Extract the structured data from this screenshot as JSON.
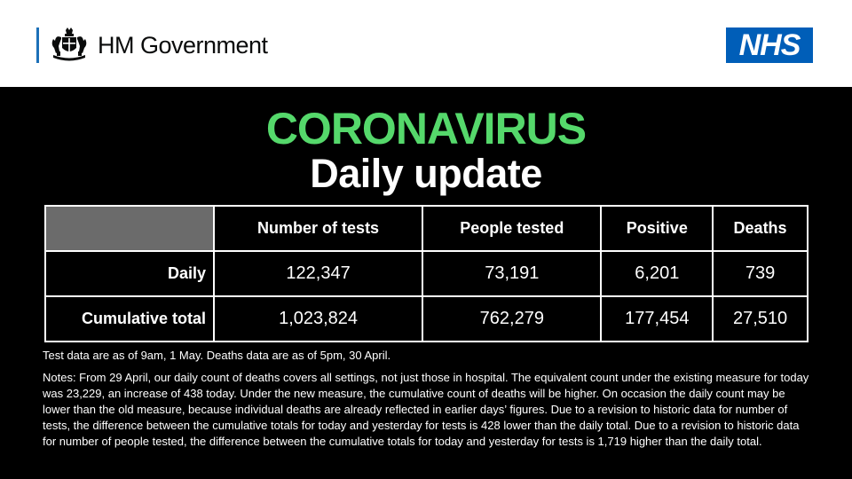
{
  "header": {
    "gov_name": "HM Government",
    "gov_logo_icon": "royal-coat-of-arms-icon",
    "nhs_logo": "NHS",
    "colors": {
      "nhs_blue": "#005eb8",
      "gov_rule": "#1d70b8"
    }
  },
  "title": {
    "line1": "CORONAVIRUS",
    "line2": "Daily update",
    "line1_color": "#55d86b"
  },
  "table": {
    "columns": [
      "",
      "Number of tests",
      "People tested",
      "Positive",
      "Deaths"
    ],
    "rows": [
      {
        "label": "Daily",
        "values": [
          "122,347",
          "73,191",
          "6,201",
          "739"
        ]
      },
      {
        "label": "Cumulative total",
        "values": [
          "1,023,824",
          "762,279",
          "177,454",
          "27,510"
        ]
      }
    ]
  },
  "notes": {
    "as_of": "Test data are as of 9am, 1 May. Deaths data are as of 5pm, 30 April.",
    "body": "Notes: From 29 April, our daily count of deaths covers all settings, not just those in hospital. The equivalent count under the existing measure for today was 23,229, an increase of 438 today. Under the new measure, the cumulative count of deaths will be higher. On occasion the daily count may be lower than the old measure, because individual deaths are already reflected in earlier days’ figures. Due to a revision to historic data for number of tests, the difference between the cumulative totals for today and yesterday for tests is 428 lower than the daily total. Due to a revision to historic data for number of people tested, the difference between the cumulative totals for today and yesterday for tests is 1,719 higher than the daily total."
  }
}
